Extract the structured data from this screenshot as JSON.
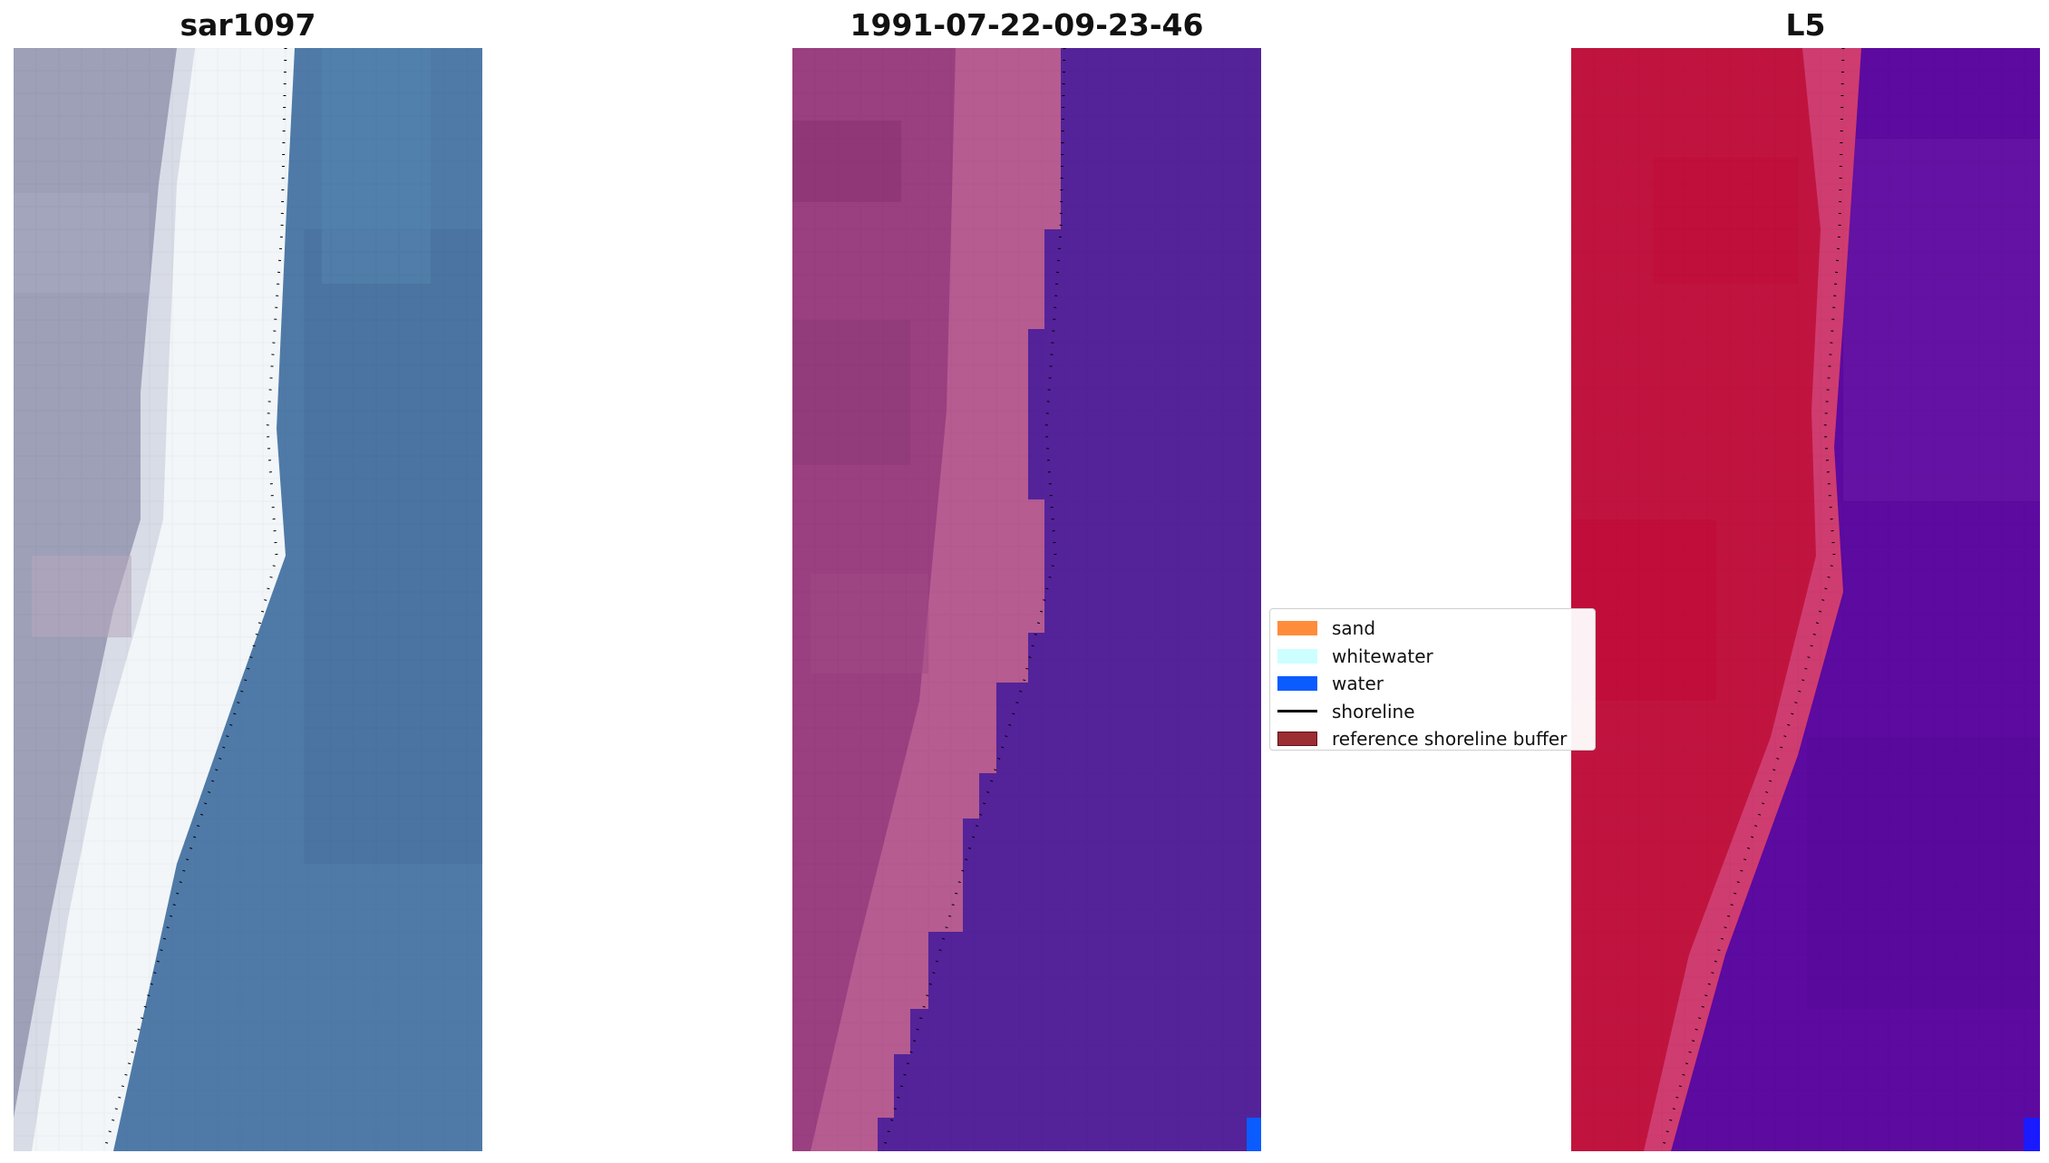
{
  "panels": [
    {
      "id": "rgb",
      "title": "sar1097"
    },
    {
      "id": "classified",
      "title": "1991-07-22-09-23-46"
    },
    {
      "id": "index",
      "title": "L5"
    }
  ],
  "legend": {
    "items": [
      {
        "label": "sand",
        "type": "patch",
        "color": "#ff8c3a"
      },
      {
        "label": "whitewater",
        "type": "patch",
        "color": "#ccffff"
      },
      {
        "label": "water",
        "type": "patch",
        "color": "#0a5cff"
      },
      {
        "label": "shoreline",
        "type": "line",
        "color": "#000000"
      },
      {
        "label": "reference shoreline buffer",
        "type": "patch",
        "color": "#9b2d33"
      }
    ]
  },
  "colors": {
    "sea_rgb": "#4f7aa8",
    "foam_rgb": "#f2f6f8",
    "land_rgb": "#9ea0b8",
    "class_land": "#9a3f80",
    "class_water": "#54239a",
    "index_land": "#c0143f",
    "index_water": "#5c0aa0"
  }
}
